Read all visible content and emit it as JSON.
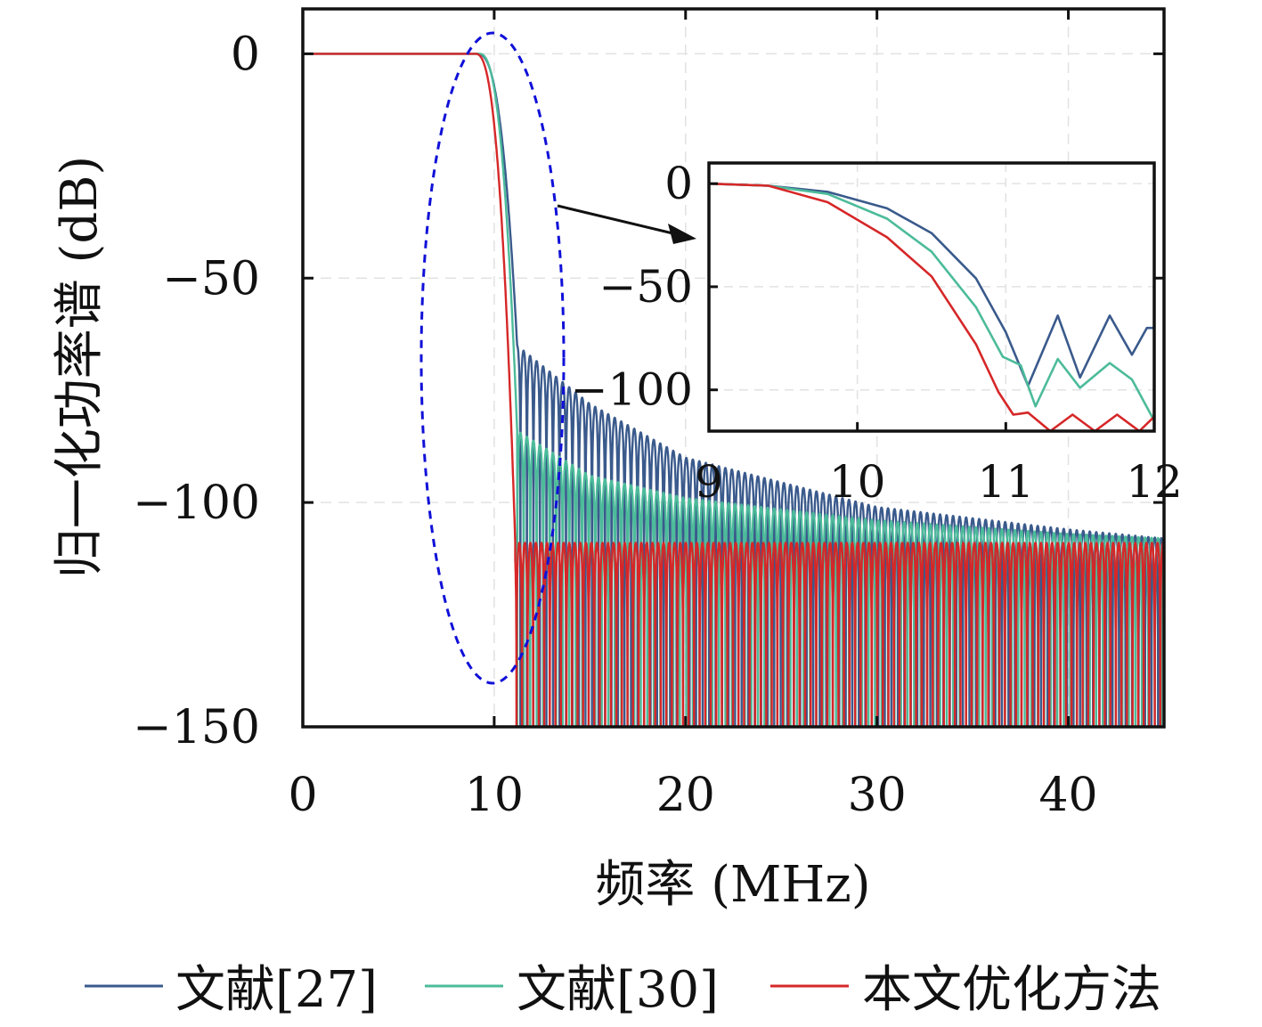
{
  "chart_data": [
    {
      "type": "line",
      "xlabel": "频率 (MHz)",
      "ylabel": "归一化功率谱 (dB)",
      "xlim": [
        0,
        45
      ],
      "ylim": [
        -150,
        10
      ],
      "xticks": [
        0,
        10,
        20,
        30,
        40
      ],
      "yticks": [
        0,
        -50,
        -100,
        -150
      ],
      "xtick_labels": [
        "0",
        "10",
        "20",
        "30",
        "40"
      ],
      "ytick_labels": [
        "0",
        "−50",
        "−100",
        "−150"
      ],
      "grid": true,
      "legend_position": "bottom",
      "annotation": "dashed ellipse around 9–13 MHz transition with arrow pointing to inset",
      "series": [
        {
          "name": "文献[27]",
          "color": "#3a5a8c",
          "passband_db": 0,
          "cutoff_mhz": 10.8,
          "sidelobe_envelope_db": [
            [
              11.2,
              -65
            ],
            [
              15,
              -78
            ],
            [
              20,
              -90
            ],
            [
              30,
              -101
            ],
            [
              40,
              -106
            ],
            [
              45,
              -108
            ]
          ],
          "null_depth_db": -150
        },
        {
          "name": "文献[30]",
          "color": "#4cbb9a",
          "passband_db": 0,
          "cutoff_mhz": 10.9,
          "sidelobe_envelope_db": [
            [
              11.2,
              -84
            ],
            [
              15,
              -94
            ],
            [
              20,
              -99
            ],
            [
              30,
              -104
            ],
            [
              40,
              -107
            ],
            [
              45,
              -108
            ]
          ],
          "null_depth_db": -150
        },
        {
          "name": "本文优化方法",
          "color": "#d62728",
          "passband_db": 0,
          "cutoff_mhz": 10.7,
          "sidelobe_envelope_db": [
            [
              11.1,
              -109
            ],
            [
              45,
              -109
            ]
          ],
          "null_depth_db": -150
        }
      ]
    },
    {
      "type": "line",
      "xlim": [
        9,
        12
      ],
      "ylim": [
        -120,
        10
      ],
      "xticks": [
        9,
        10,
        11,
        12
      ],
      "yticks": [
        0,
        -50,
        -100
      ],
      "xtick_labels": [
        "9",
        "10",
        "11",
        "12"
      ],
      "ytick_labels": [
        "0",
        "−50",
        "−100"
      ],
      "grid": true,
      "series": [
        {
          "name": "文献[27]",
          "color": "#3a5a8c",
          "x": [
            9.0,
            9.4,
            9.8,
            10.2,
            10.5,
            10.8,
            11.0,
            11.15,
            11.35,
            11.5,
            11.7,
            11.85,
            11.95,
            12.0
          ],
          "y": [
            0,
            -1,
            -4,
            -12,
            -24,
            -46,
            -72,
            -98,
            -64,
            -94,
            -64,
            -83,
            -70,
            -70
          ]
        },
        {
          "name": "文献[30]",
          "color": "#4cbb9a",
          "x": [
            9.0,
            9.4,
            9.8,
            10.2,
            10.5,
            10.8,
            10.98,
            11.1,
            11.2,
            11.35,
            11.5,
            11.7,
            11.85,
            12.0
          ],
          "y": [
            0,
            -1,
            -5,
            -17,
            -33,
            -60,
            -84,
            -88,
            -108,
            -85,
            -99,
            -87,
            -95,
            -115
          ]
        },
        {
          "name": "本文优化方法",
          "color": "#d62728",
          "x": [
            9.0,
            9.4,
            9.8,
            10.2,
            10.5,
            10.8,
            10.95,
            11.05,
            11.15,
            11.3,
            11.45,
            11.6,
            11.75,
            11.9,
            12.0
          ],
          "y": [
            0,
            -1,
            -9,
            -26,
            -45,
            -78,
            -101,
            -112,
            -111,
            -121,
            -112,
            -122,
            -112,
            -121,
            -113
          ]
        }
      ]
    }
  ]
}
